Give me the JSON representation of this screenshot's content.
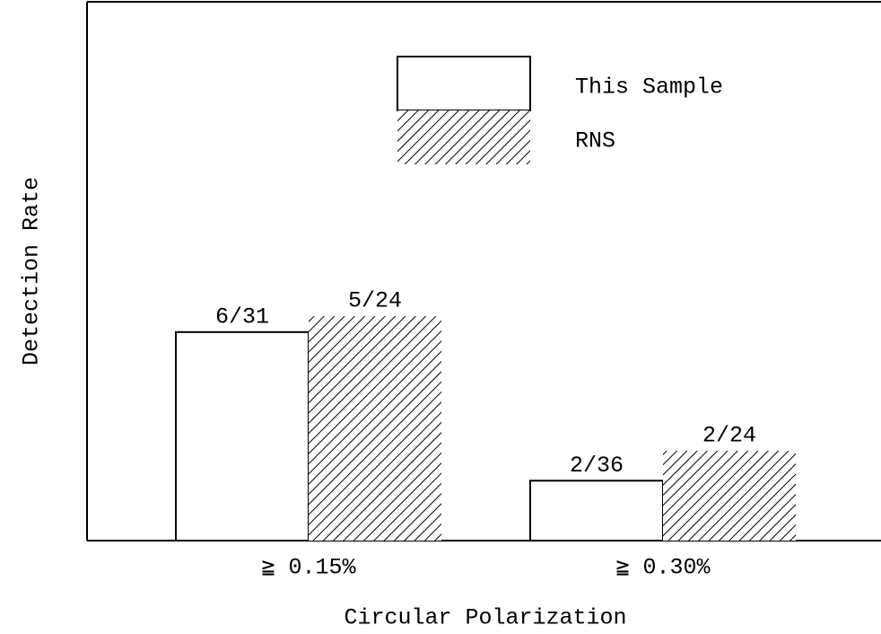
{
  "chart_data": {
    "type": "bar",
    "x_label": "Circular Polarization",
    "y_label": "Detection Rate",
    "categories": [
      "≧ 0.15%",
      "≧ 0.30%"
    ],
    "series": [
      {
        "name": "This Sample",
        "color": "#ffffff",
        "hatch": false,
        "values": [
          0.1935,
          0.0556
        ],
        "value_labels": [
          "6/31",
          "2/36"
        ]
      },
      {
        "name": "RNS",
        "color": "#000000",
        "hatch": true,
        "values": [
          0.2083,
          0.0833
        ],
        "value_labels": [
          "5/24",
          "2/24"
        ]
      }
    ],
    "ylim": [
      0,
      0.5
    ]
  }
}
